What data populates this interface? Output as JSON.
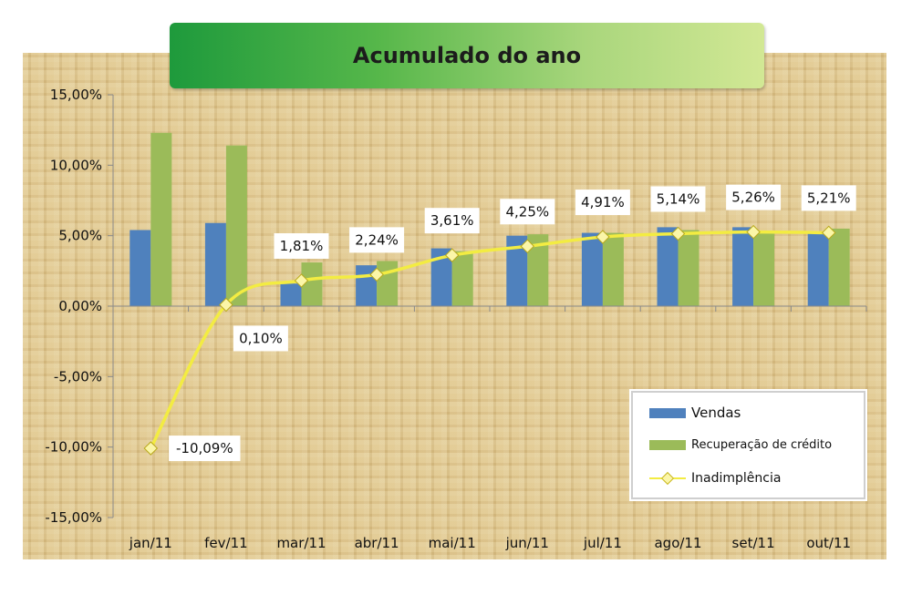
{
  "chart_data": {
    "type": "bar",
    "title": "Acumulado do ano",
    "categories": [
      "jan/11",
      "fev/11",
      "mar/11",
      "abr/11",
      "mai/11",
      "jun/11",
      "jul/11",
      "ago/11",
      "set/11",
      "out/11"
    ],
    "y_tick_labels": [
      "15,00%",
      "10,00%",
      "5,00%",
      "0,00%",
      "-5,00%",
      "-10,00%",
      "-15,00%"
    ],
    "ylim": [
      -15,
      15
    ],
    "grid": false,
    "legend_position": "bottom-right",
    "series": [
      {
        "name": "Vendas",
        "type": "bar",
        "color": "#4f81bd",
        "values": [
          5.4,
          5.9,
          1.6,
          2.9,
          4.1,
          5.0,
          5.2,
          5.6,
          5.6,
          5.3
        ]
      },
      {
        "name": "Recuperação de crédito",
        "type": "bar",
        "color": "#9bbb59",
        "values": [
          12.3,
          11.4,
          3.1,
          3.2,
          3.9,
          5.1,
          5.2,
          5.4,
          5.3,
          5.5
        ]
      },
      {
        "name": "Inadimplência",
        "type": "line",
        "color": "#f3ec42",
        "values": [
          -10.09,
          0.1,
          1.81,
          2.24,
          3.61,
          4.25,
          4.91,
          5.14,
          5.26,
          5.21
        ],
        "labels": [
          "-10,09%",
          "0,10%",
          "1,81%",
          "2,24%",
          "3,61%",
          "4,25%",
          "4,91%",
          "5,14%",
          "5,26%",
          "5,21%"
        ]
      }
    ]
  }
}
